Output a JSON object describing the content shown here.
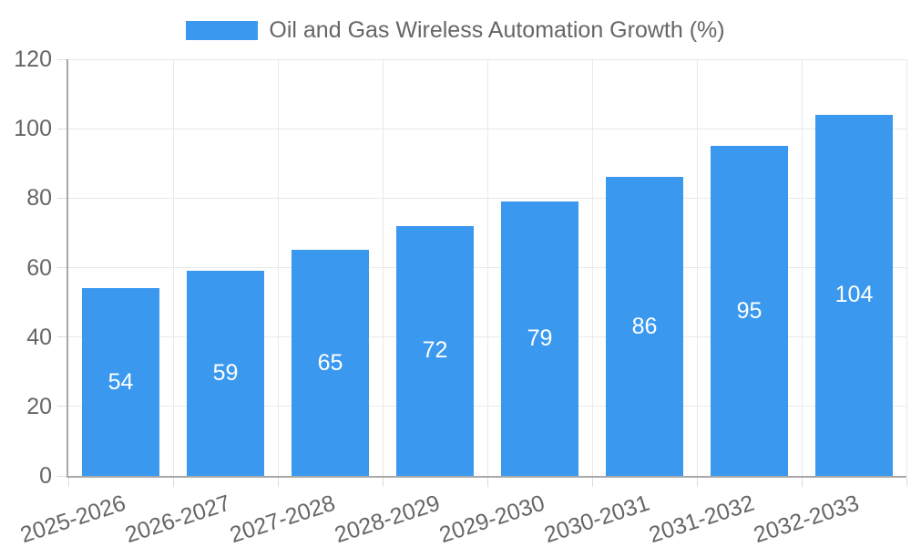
{
  "legend": {
    "label": "Oil and Gas Wireless Automation Growth (%)"
  },
  "chart_data": {
    "type": "bar",
    "title": "Oil and Gas Wireless Automation Growth (%)",
    "categories": [
      "2025-2026",
      "2026-2027",
      "2027-2028",
      "2028-2029",
      "2029-2030",
      "2030-2031",
      "2031-2032",
      "2032-2033"
    ],
    "values": [
      54,
      59,
      65,
      72,
      79,
      86,
      95,
      104
    ],
    "series": [
      {
        "name": "Oil and Gas Wireless Automation Growth (%)",
        "values": [
          54,
          59,
          65,
          72,
          79,
          86,
          95,
          104
        ]
      }
    ],
    "xlabel": "",
    "ylabel": "",
    "ylim": [
      0,
      120
    ],
    "yticks": [
      0,
      20,
      40,
      60,
      80,
      100,
      120
    ],
    "grid": true,
    "legend_position": "top",
    "value_labels_inside_bars": true,
    "x_label_rotation_deg": -18,
    "colors": {
      "bar": "#3a99ef",
      "value_label": "#ffffff",
      "axis_text": "#666666",
      "grid_line": "#e9e9e9",
      "tick_mark": "#dcdcdc",
      "axis_line": "#a8a8a8"
    }
  }
}
